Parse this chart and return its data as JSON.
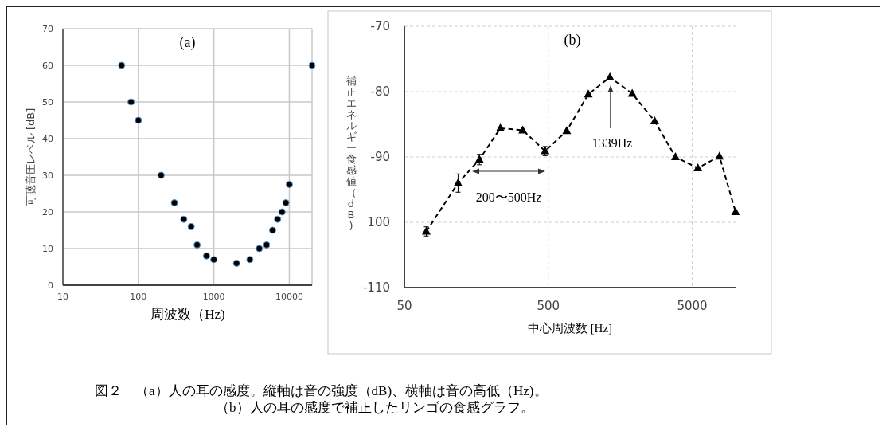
{
  "chart_data": [
    {
      "type": "scatter",
      "title": "(a)",
      "xlabel": "周波数（Hz)",
      "ylabel": "可聴音圧レベル [dB]",
      "log": "x",
      "xlim": [
        10,
        20000
      ],
      "xticks": [
        10,
        100,
        1000,
        10000
      ],
      "ylim": [
        0,
        70
      ],
      "yticks": [
        0,
        10,
        20,
        30,
        40,
        50,
        60,
        70
      ],
      "grid": true,
      "marker": "circle",
      "x": [
        60,
        80,
        100,
        200,
        300,
        400,
        500,
        600,
        800,
        1000,
        2000,
        3000,
        4000,
        5000,
        6000,
        7000,
        8000,
        9000,
        10000,
        20000
      ],
      "series": [
        {
          "color": "#000000",
          "values": [
            60,
            50,
            45,
            30,
            22.5,
            18,
            16,
            11,
            8,
            7,
            6,
            7,
            10,
            11,
            15,
            18,
            20,
            22.5,
            27.5,
            60
          ]
        }
      ],
      "annotations": [
        "図２　（a）人の耳の感度。縦軸は音の強度（dB)、横軸は音の高低（Hz)。",
        "（b）人の耳の感度で補正したリンゴの食感グラフ。"
      ]
    },
    {
      "type": "line",
      "title": "(b)",
      "xlabel": "中心周波数 [Hz]",
      "ylabel": "補正エネルギー食感値（dB)",
      "log": "x",
      "xlim": [
        50,
        10000
      ],
      "xticks": [
        50,
        500,
        5000
      ],
      "ylim": [
        -110,
        -70
      ],
      "yticks": [
        -110,
        {
          "value": -100,
          "label": "100"
        },
        -90,
        -80,
        -70
      ],
      "grid": true,
      "marker": "triangle",
      "line_style": "dashed",
      "x": [
        71,
        118,
        166,
        232,
        332,
        475,
        671,
        948,
        1339,
        1914,
        2740,
        3822,
        5470,
        7727,
        10000
      ],
      "series": [
        {
          "color": "#000000",
          "values": [
            -101.4,
            -94,
            -90.4,
            -85.6,
            -85.9,
            -89.1,
            -86,
            -80.4,
            -77.8,
            -80.3,
            -84.5,
            -90,
            -91.7,
            -89.9,
            -98.4
          ],
          "errors": [
            0.7,
            1.4,
            0.8,
            null,
            null,
            0.7,
            null,
            null,
            null,
            null,
            null,
            null,
            null,
            null,
            null
          ]
        }
      ],
      "annotations": [
        "1339Hz",
        "200〜500Hz"
      ]
    }
  ]
}
